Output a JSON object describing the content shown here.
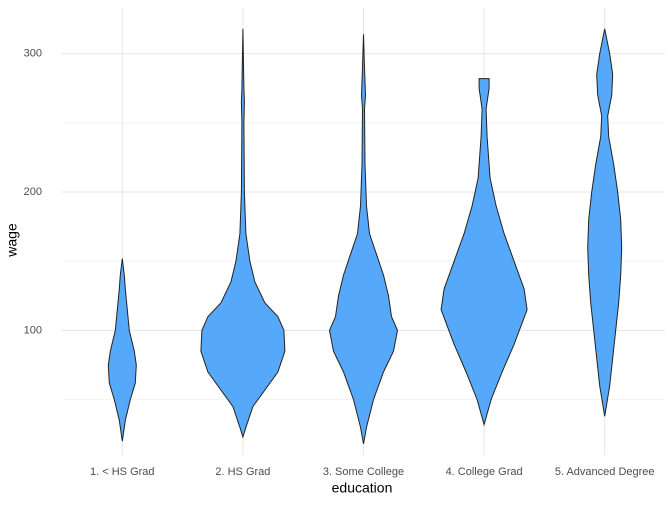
{
  "chart_data": {
    "type": "violin",
    "x_label": "education",
    "y_label": "wage",
    "categories": [
      "1. < HS Grad",
      "2. HS Grad",
      "3. Some College",
      "4. College Grad",
      "5. Advanced Degree"
    ],
    "color": "#56a8fa",
    "grid": true,
    "ylim": [
      10,
      333
    ],
    "yticks": [
      100,
      200,
      300
    ],
    "yminorticks": [
      50,
      150,
      250
    ],
    "violins": [
      {
        "wage": [
          20,
          35,
          50,
          62,
          75,
          85,
          100,
          115,
          130,
          140,
          152
        ],
        "width": [
          0,
          0.06,
          0.16,
          0.26,
          0.28,
          0.24,
          0.14,
          0.1,
          0.06,
          0.04,
          0
        ]
      },
      {
        "wage": [
          23,
          30,
          45,
          60,
          70,
          85,
          100,
          110,
          120,
          135,
          150,
          170,
          200,
          250,
          265,
          275,
          318
        ],
        "width": [
          0,
          0.06,
          0.2,
          0.5,
          0.7,
          0.84,
          0.82,
          0.7,
          0.44,
          0.24,
          0.14,
          0.06,
          0.03,
          0.02,
          0.03,
          0.02,
          0
        ]
      },
      {
        "wage": [
          18,
          30,
          50,
          70,
          85,
          100,
          110,
          125,
          140,
          155,
          170,
          190,
          220,
          260,
          270,
          290,
          314
        ],
        "width": [
          0,
          0.06,
          0.2,
          0.4,
          0.6,
          0.68,
          0.56,
          0.5,
          0.4,
          0.26,
          0.12,
          0.06,
          0.03,
          0.02,
          0.04,
          0.02,
          0
        ]
      },
      {
        "wage": [
          32,
          50,
          70,
          90,
          115,
          130,
          150,
          170,
          190,
          210,
          240,
          260,
          275,
          282
        ],
        "width": [
          0,
          0.14,
          0.36,
          0.6,
          0.86,
          0.8,
          0.6,
          0.4,
          0.24,
          0.12,
          0.06,
          0.04,
          0.1,
          0.1
        ]
      },
      {
        "wage": [
          38,
          60,
          80,
          100,
          120,
          140,
          160,
          180,
          200,
          220,
          240,
          255,
          270,
          285,
          300,
          318
        ],
        "width": [
          0,
          0.1,
          0.16,
          0.22,
          0.28,
          0.32,
          0.34,
          0.32,
          0.26,
          0.18,
          0.08,
          0.06,
          0.14,
          0.16,
          0.1,
          0
        ]
      }
    ]
  }
}
